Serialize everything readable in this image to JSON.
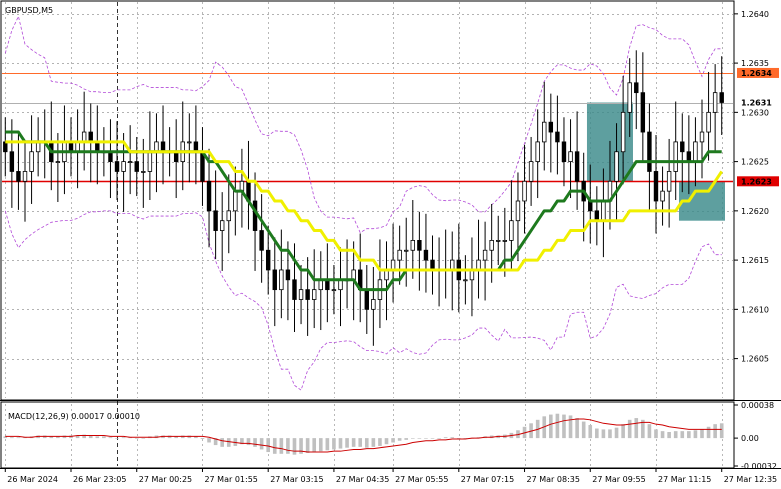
{
  "colors": {
    "background": "#ffffff",
    "grid": "#9a9a9a",
    "candle": "#000000",
    "ma_fast": "#1e7a1e",
    "ma_slow": "#f0f000",
    "bollinger": "#b24ad8",
    "level_red": "#e00000",
    "level_orange": "#ff6a2a",
    "box": "#3a8a8a",
    "macd_hist": "#c0c0c0",
    "macd_signal": "#cc0000"
  },
  "chart_data": [
    {
      "type": "candlestick",
      "title": "GBPUSD,M5",
      "grid": true,
      "ylim": [
        1.2601,
        1.2641
      ],
      "y_ticks": [
        "1.2640",
        "1.2635",
        "1.2630",
        "1.2625",
        "1.2620",
        "1.2615",
        "1.2610",
        "1.2605"
      ],
      "x_ticks": [
        "26 Mar 2024",
        "26 Mar 23:05",
        "27 Mar 00:25",
        "27 Mar 01:55",
        "27 Mar 03:15",
        "27 Mar 04:35",
        "27 Mar 05:55",
        "27 Mar 07:15",
        "27 Mar 08:35",
        "27 Mar 09:55",
        "27 Mar 11:15",
        "27 Mar 12:35"
      ],
      "levels": [
        {
          "value": 1.2634,
          "label": "1.2634",
          "color": "orange"
        },
        {
          "value": 1.2631,
          "label": "1.2631",
          "color": "grey"
        },
        {
          "value": 1.2623,
          "label": "1.2623",
          "color": "red"
        }
      ],
      "closes": [
        1.2626,
        1.2624,
        1.2623,
        1.2624,
        1.2626,
        1.2627,
        1.2627,
        1.2625,
        1.2625,
        1.2627,
        1.2626,
        1.2627,
        1.2628,
        1.2627,
        1.2626,
        1.2626,
        1.2625,
        1.2624,
        1.2625,
        1.2625,
        1.2624,
        1.2624,
        1.2626,
        1.2627,
        1.2626,
        1.2626,
        1.2625,
        1.2627,
        1.2627,
        1.2626,
        1.2623,
        1.262,
        1.2618,
        1.2619,
        1.262,
        1.2622,
        1.2623,
        1.2621,
        1.2618,
        1.2616,
        1.2614,
        1.2612,
        1.2614,
        1.2613,
        1.2611,
        1.2612,
        1.2611,
        1.2612,
        1.2613,
        1.2612,
        1.2612,
        1.2613,
        1.2613,
        1.2614,
        1.2612,
        1.261,
        1.2611,
        1.2613,
        1.2614,
        1.2615,
        1.2616,
        1.2616,
        1.2617,
        1.2616,
        1.2615,
        1.2614,
        1.2614,
        1.2614,
        1.2615,
        1.2613,
        1.2613,
        1.2614,
        1.2615,
        1.2616,
        1.2617,
        1.2617,
        1.2617,
        1.2619,
        1.2621,
        1.2623,
        1.2625,
        1.2627,
        1.2629,
        1.2628,
        1.2627,
        1.2625,
        1.2626,
        1.2623,
        1.2621,
        1.262,
        1.2619,
        1.2621,
        1.2623,
        1.2626,
        1.263,
        1.2633,
        1.2632,
        1.2628,
        1.2624,
        1.2621,
        1.2622,
        1.2624,
        1.2627,
        1.2626,
        1.2625,
        1.2627,
        1.2628,
        1.263,
        1.2632,
        1.2631
      ],
      "series": [
        {
          "name": "",
          "kind": "ma_fast",
          "values": [
            1.2628,
            1.2628,
            1.2628,
            1.2627,
            1.2627,
            1.2627,
            1.2627,
            1.2626,
            1.2626,
            1.2626,
            1.2626,
            1.2626,
            1.2626,
            1.2626,
            1.2626,
            1.2626,
            1.2626,
            1.2626,
            1.2626,
            1.2626,
            1.2626,
            1.2626,
            1.2626,
            1.2626,
            1.2626,
            1.2626,
            1.2626,
            1.2626,
            1.2626,
            1.2626,
            1.2626,
            1.2625,
            1.2625,
            1.2624,
            1.2623,
            1.2622,
            1.2622,
            1.2621,
            1.262,
            1.2619,
            1.2618,
            1.2617,
            1.2616,
            1.2616,
            1.2615,
            1.2614,
            1.2614,
            1.2613,
            1.2613,
            1.2613,
            1.2613,
            1.2613,
            1.2613,
            1.2613,
            1.2612,
            1.2612,
            1.2612,
            1.2612,
            1.2612,
            1.2613,
            1.2613,
            1.2614,
            1.2614,
            1.2614,
            1.2614,
            1.2614,
            1.2614,
            1.2614,
            1.2614,
            1.2614,
            1.2614,
            1.2614,
            1.2614,
            1.2614,
            1.2614,
            1.2614,
            1.2615,
            1.2615,
            1.2616,
            1.2617,
            1.2618,
            1.2619,
            1.262,
            1.262,
            1.2621,
            1.2621,
            1.2622,
            1.2622,
            1.2622,
            1.2621,
            1.2621,
            1.2621,
            1.2621,
            1.2622,
            1.2623,
            1.2624,
            1.2625,
            1.2625,
            1.2625,
            1.2625,
            1.2625,
            1.2625,
            1.2625,
            1.2625,
            1.2625,
            1.2625,
            1.2625,
            1.2626,
            1.2626,
            1.2626
          ]
        },
        {
          "name": "",
          "kind": "ma_slow",
          "values": [
            1.2627,
            1.2627,
            1.2627,
            1.2627,
            1.2627,
            1.2627,
            1.2627,
            1.2627,
            1.2627,
            1.2627,
            1.2627,
            1.2627,
            1.2627,
            1.2627,
            1.2627,
            1.2627,
            1.2627,
            1.2627,
            1.2627,
            1.2626,
            1.2626,
            1.2626,
            1.2626,
            1.2626,
            1.2626,
            1.2626,
            1.2626,
            1.2626,
            1.2626,
            1.2626,
            1.2626,
            1.2626,
            1.2625,
            1.2625,
            1.2625,
            1.2624,
            1.2624,
            1.2623,
            1.2623,
            1.2622,
            1.2622,
            1.2621,
            1.2621,
            1.262,
            1.262,
            1.2619,
            1.2619,
            1.2618,
            1.2618,
            1.2617,
            1.2617,
            1.2616,
            1.2616,
            1.2616,
            1.2615,
            1.2615,
            1.2615,
            1.2614,
            1.2614,
            1.2614,
            1.2614,
            1.2614,
            1.2614,
            1.2614,
            1.2614,
            1.2614,
            1.2614,
            1.2614,
            1.2614,
            1.2614,
            1.2614,
            1.2614,
            1.2614,
            1.2614,
            1.2614,
            1.2614,
            1.2614,
            1.2614,
            1.2614,
            1.2615,
            1.2615,
            1.2615,
            1.2616,
            1.2616,
            1.2617,
            1.2617,
            1.2618,
            1.2618,
            1.2618,
            1.2619,
            1.2619,
            1.2619,
            1.2619,
            1.2619,
            1.2619,
            1.262,
            1.262,
            1.262,
            1.262,
            1.262,
            1.262,
            1.262,
            1.262,
            1.2621,
            1.2621,
            1.2622,
            1.2622,
            1.2622,
            1.2623,
            1.2624
          ]
        }
      ],
      "boxes": [
        {
          "x_from": 89,
          "x_to": 95,
          "y_from": 1.2623,
          "y_to": 1.2631
        },
        {
          "x_from": 103,
          "x_to": 109,
          "y_from": 1.2619,
          "y_to": 1.2623
        }
      ]
    },
    {
      "type": "bar",
      "title": "MACD(12,26,9) 0.00017 0.00010",
      "ylim": [
        -0.00032,
        0.00038
      ],
      "y_ticks": [
        "0.00038",
        "0.00",
        "-0.00032"
      ],
      "x_index_range": [
        0,
        109
      ],
      "values": [
        2e-05,
        1e-05,
        1e-05,
        1e-05,
        2e-05,
        3e-05,
        3e-05,
        2e-05,
        2e-05,
        3e-05,
        3e-05,
        3e-05,
        4e-05,
        3e-05,
        2e-05,
        2e-05,
        1e-05,
        0.0,
        1e-05,
        1e-05,
        0.0,
        0.0,
        2e-05,
        3e-05,
        3e-05,
        3e-05,
        2e-05,
        3e-05,
        3e-05,
        2e-05,
        -1e-05,
        -5e-05,
        -8e-05,
        -0.0001,
        -0.0001,
        -9e-05,
        -7e-05,
        -8e-05,
        -0.0001,
        -0.00013,
        -0.00016,
        -0.00018,
        -0.00018,
        -0.00018,
        -0.00019,
        -0.00018,
        -0.00017,
        -0.00016,
        -0.00015,
        -0.00014,
        -0.00013,
        -0.00012,
        -0.00011,
        -0.0001,
        -0.0001,
        -0.00011,
        -0.0001,
        -9e-05,
        -7e-05,
        -5e-05,
        -3e-05,
        -2e-05,
        0.0,
        0.0,
        0.0,
        0.0,
        0.0,
        1e-05,
        1e-05,
        0.0,
        0.0,
        0.0,
        1e-05,
        2e-05,
        3e-05,
        3e-05,
        4e-05,
        6e-05,
        9e-05,
        0.00013,
        0.00017,
        0.00021,
        0.00025,
        0.00027,
        0.00028,
        0.00027,
        0.00026,
        0.00023,
        0.00019,
        0.00015,
        0.00011,
        0.0001,
        0.0001,
        0.00012,
        0.00016,
        0.00021,
        0.00023,
        0.00021,
        0.00016,
        0.0001,
        8e-05,
        7e-05,
        8e-05,
        8e-05,
        8e-05,
        9e-05,
        0.0001,
        0.00013,
        0.00016,
        0.00017
      ],
      "series": [
        {
          "name": "",
          "kind": "signal",
          "values": [
            2e-05,
            2e-05,
            2e-05,
            1e-05,
            1e-05,
            2e-05,
            2e-05,
            2e-05,
            2e-05,
            2e-05,
            2e-05,
            3e-05,
            3e-05,
            3e-05,
            3e-05,
            3e-05,
            2e-05,
            2e-05,
            2e-05,
            1e-05,
            1e-05,
            1e-05,
            1e-05,
            1e-05,
            2e-05,
            2e-05,
            2e-05,
            2e-05,
            2e-05,
            2e-05,
            2e-05,
            1e-05,
            -1e-05,
            -3e-05,
            -4e-05,
            -5e-05,
            -6e-05,
            -6e-05,
            -7e-05,
            -8e-05,
            -9e-05,
            -0.00011,
            -0.00012,
            -0.00014,
            -0.00015,
            -0.00015,
            -0.00016,
            -0.00016,
            -0.00016,
            -0.00016,
            -0.00015,
            -0.00015,
            -0.00014,
            -0.00013,
            -0.00013,
            -0.00012,
            -0.00012,
            -0.00011,
            -0.0001,
            -9e-05,
            -8e-05,
            -7e-05,
            -5e-05,
            -4e-05,
            -3e-05,
            -3e-05,
            -2e-05,
            -2e-05,
            -1e-05,
            -1e-05,
            -1e-05,
            0.0,
            0.0,
            1e-05,
            1e-05,
            2e-05,
            2e-05,
            3e-05,
            4e-05,
            6e-05,
            8e-05,
            0.0001,
            0.00013,
            0.00016,
            0.00018,
            0.0002,
            0.00021,
            0.00022,
            0.00022,
            0.00021,
            0.00019,
            0.00017,
            0.00016,
            0.00015,
            0.00015,
            0.00016,
            0.00017,
            0.00018,
            0.00018,
            0.00016,
            0.00015,
            0.00013,
            0.00012,
            0.00011,
            0.0001,
            0.0001,
            0.0001,
            0.0001,
            0.0001,
            0.0001
          ]
        }
      ]
    }
  ]
}
